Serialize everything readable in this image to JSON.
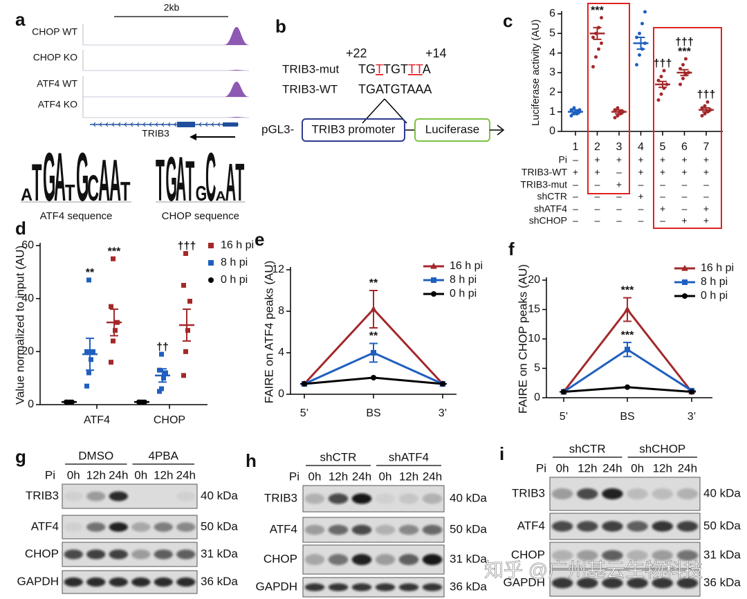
{
  "panel_labels": [
    "a",
    "b",
    "c",
    "d",
    "e",
    "f",
    "g",
    "h",
    "i"
  ],
  "panel_a": {
    "scale": "2kb",
    "tracks": [
      "CHOP WT",
      "CHOP KO",
      "ATF4 WT",
      "ATF4 KO"
    ],
    "gene": "TRIB3",
    "motifs": [
      {
        "name": "ATF4 sequence",
        "logo": [
          "A",
          "T",
          "G",
          "A",
          "T",
          "G",
          "C",
          "A",
          "A",
          "T"
        ]
      },
      {
        "name": "CHOP sequence",
        "logo": [
          "T",
          "G",
          "A",
          "T",
          "G",
          "C",
          "A",
          "A",
          "T"
        ]
      }
    ]
  },
  "panel_b": {
    "positions": [
      "+22",
      "+14"
    ],
    "mut_label": "TRIB3-mut",
    "mut_seq": "TGTTGTTTA",
    "wt_label": "TRIB3-WT",
    "wt_seq": "TGATGTAAA",
    "vector": "pGL3-",
    "promoter": "TRIB3 promoter",
    "reporter": "Luciferase"
  },
  "chart_data": [
    {
      "type": "dot",
      "ylabel": "Luciferase activity (AU)",
      "categories": [
        "1",
        "2",
        "3",
        "4",
        "5",
        "6",
        "7"
      ],
      "ylim": [
        0,
        6
      ],
      "yticks": [
        0,
        1,
        2,
        3,
        4,
        5,
        6
      ],
      "values": [
        1.0,
        5.0,
        1.0,
        4.5,
        2.4,
        3.0,
        1.1
      ],
      "errors": [
        0.1,
        0.3,
        0.1,
        0.3,
        0.15,
        0.15,
        0.1
      ],
      "colors": [
        "#1f5fbf",
        "#a3282a",
        "#a3282a",
        "#1f5fbf",
        "#a3282a",
        "#a3282a",
        "#a3282a"
      ],
      "points": [
        [
          0.8,
          0.9,
          1.0,
          1.0,
          1.1,
          1.2,
          0.9,
          1.1
        ],
        [
          3.3,
          3.8,
          4.2,
          4.5,
          4.8,
          5.0,
          5.3,
          5.8
        ],
        [
          0.7,
          0.8,
          0.9,
          1.0,
          1.1,
          1.2,
          1.0
        ],
        [
          3.4,
          3.9,
          4.2,
          4.5,
          4.8,
          5.0,
          5.5,
          6.1
        ],
        [
          1.6,
          1.9,
          2.2,
          2.4,
          2.6,
          2.8,
          3.1
        ],
        [
          2.4,
          2.7,
          2.9,
          3.0,
          3.2,
          3.4,
          3.7
        ],
        [
          0.8,
          0.9,
          1.0,
          1.1,
          1.2,
          1.3,
          1.5
        ]
      ],
      "annotations": [
        [],
        [
          "***"
        ],
        [],
        [],
        [
          "†††"
        ],
        [
          "†††",
          "***"
        ],
        [
          "†††"
        ]
      ],
      "conditions": [
        {
          "name": "Pi",
          "values": [
            "–",
            "+",
            "+",
            "+",
            "+",
            "+",
            "+"
          ]
        },
        {
          "name": "TRIB3-WT",
          "values": [
            "+",
            "+",
            "–",
            "+",
            "+",
            "+",
            "+"
          ]
        },
        {
          "name": "TRIB3-mut",
          "values": [
            "–",
            "–",
            "+",
            "–",
            "–",
            "–",
            "–"
          ]
        },
        {
          "name": "shCTR",
          "values": [
            "–",
            "–",
            "–",
            "+",
            "–",
            "–",
            "–"
          ]
        },
        {
          "name": "shATF4",
          "values": [
            "–",
            "–",
            "–",
            "–",
            "+",
            "–",
            "+"
          ]
        },
        {
          "name": "shCHOP",
          "values": [
            "–",
            "–",
            "–",
            "–",
            "–",
            "+",
            "+"
          ]
        }
      ]
    },
    {
      "type": "dot",
      "ylabel": "Value normalized to input (AU)",
      "categories": [
        "ATF4",
        "CHOP"
      ],
      "ylim": [
        0,
        60
      ],
      "yticks": [
        0,
        20,
        40,
        60
      ],
      "legend": "upper right",
      "series": [
        {
          "name": "16 h pi",
          "color": "#a3282a",
          "marker": "square",
          "values": [
            31,
            30
          ],
          "errors": [
            5,
            6
          ],
          "points": [
            [
              16,
              24,
              28,
              31,
              37,
              55
            ],
            [
              11,
              20,
              28,
              39,
              45,
              57
            ]
          ],
          "annotations": [
            [
              "***"
            ],
            [
              "†††"
            ]
          ]
        },
        {
          "name": "8 h pi",
          "color": "#1f5fbf",
          "marker": "square",
          "values": [
            19,
            11
          ],
          "errors": [
            6,
            2.5
          ],
          "points": [
            [
              7,
              12,
              17,
              20,
              20,
              47
            ],
            [
              5,
              6,
              10,
              12,
              13,
              19
            ]
          ],
          "annotations": [
            [
              "**"
            ],
            [
              "††"
            ]
          ]
        },
        {
          "name": "0 h pi",
          "color": "#000000",
          "marker": "circle",
          "values": [
            1,
            1
          ],
          "errors": [
            0.3,
            0.3
          ],
          "points": [
            [
              1,
              1,
              1,
              1,
              1
            ],
            [
              1,
              1,
              1,
              1,
              1
            ]
          ],
          "annotations": [
            [],
            []
          ]
        }
      ]
    },
    {
      "type": "line",
      "ylabel": "FAIRE on ATF4 peaks (AU)",
      "categories": [
        "5’",
        "BS",
        "3’"
      ],
      "ylim": [
        0,
        12
      ],
      "yticks": [
        0,
        4,
        8,
        12
      ],
      "legend": "upper right",
      "series": [
        {
          "name": "16 h pi",
          "color": "#a3282a",
          "marker": "triangle",
          "values": [
            1,
            8.2,
            1
          ],
          "errors": [
            0,
            1.8,
            0
          ],
          "annotations": [
            [],
            [
              "**"
            ],
            []
          ]
        },
        {
          "name": "8 h pi",
          "color": "#1f5fbf",
          "marker": "square",
          "values": [
            1,
            4,
            1
          ],
          "errors": [
            0,
            0.9,
            0
          ],
          "annotations": [
            [],
            [
              "**"
            ],
            []
          ]
        },
        {
          "name": "0 h pi",
          "color": "#000000",
          "marker": "circle",
          "values": [
            1,
            1.6,
            1
          ],
          "errors": [
            0,
            0,
            0
          ],
          "annotations": [
            [],
            [],
            []
          ]
        }
      ]
    },
    {
      "type": "line",
      "ylabel": "FAIRE on CHOP peaks (AU)",
      "categories": [
        "5’",
        "BS",
        "3’"
      ],
      "ylim": [
        0,
        20
      ],
      "yticks": [
        0,
        5,
        10,
        15,
        20
      ],
      "legend": "upper right",
      "series": [
        {
          "name": "16 h pi",
          "color": "#a3282a",
          "marker": "triangle",
          "values": [
            1,
            15,
            1
          ],
          "errors": [
            0,
            2,
            0
          ],
          "annotations": [
            [],
            [
              "***"
            ],
            []
          ]
        },
        {
          "name": "8 h pi",
          "color": "#1f5fbf",
          "marker": "square",
          "values": [
            1,
            8.2,
            1.2
          ],
          "errors": [
            0,
            1.2,
            0
          ],
          "annotations": [
            [],
            [
              "***"
            ],
            []
          ]
        },
        {
          "name": "0 h pi",
          "color": "#000000",
          "marker": "circle",
          "values": [
            1,
            1.8,
            1
          ],
          "errors": [
            0,
            0,
            0
          ],
          "annotations": [
            [],
            [],
            []
          ]
        }
      ]
    }
  ],
  "blots": [
    {
      "pi": "Pi",
      "groups": [
        "DMSO",
        "4PBA"
      ],
      "times": [
        "0h",
        "12h",
        "24h",
        "0h",
        "12h",
        "24h"
      ],
      "rows": [
        {
          "name": "TRIB3",
          "size": "40 kDa"
        },
        {
          "name": "ATF4",
          "size": "50 kDa"
        },
        {
          "name": "CHOP",
          "size": "31 kDa"
        },
        {
          "name": "GAPDH",
          "size": "36 kDa"
        }
      ]
    },
    {
      "pi": "Pi",
      "groups": [
        "shCTR",
        "shATF4"
      ],
      "times": [
        "0h",
        "12h",
        "24h",
        "0h",
        "12h",
        "24h"
      ],
      "rows": [
        {
          "name": "TRIB3",
          "size": "40 kDa"
        },
        {
          "name": "ATF4",
          "size": "50 kDa"
        },
        {
          "name": "CHOP",
          "size": "31 kDa"
        },
        {
          "name": "GAPDH",
          "size": "36 kDa"
        }
      ]
    },
    {
      "pi": "Pi",
      "groups": [
        "shCTR",
        "shCHOP"
      ],
      "times": [
        "0h",
        "12h",
        "24h",
        "0h",
        "12h",
        "24h"
      ],
      "rows": [
        {
          "name": "TRIB3",
          "size": "40 kDa"
        },
        {
          "name": "ATF4",
          "size": "50 kDa"
        },
        {
          "name": "CHOP",
          "size": "31 kDa"
        },
        {
          "name": "GAPDH",
          "size": "36 kDa"
        }
      ]
    }
  ],
  "watermark": "知乎 @广州基云生物科技"
}
